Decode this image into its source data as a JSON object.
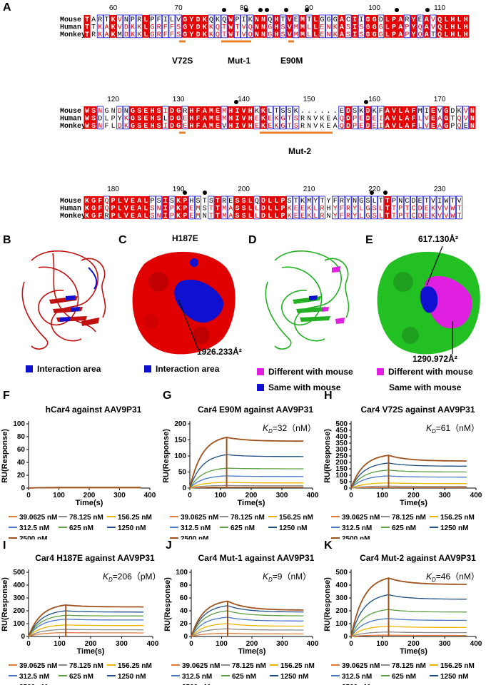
{
  "panels": {
    "A": "A",
    "B": "B",
    "C": "C",
    "D": "D",
    "E": "E",
    "F": "F",
    "G": "G",
    "H": "H",
    "I": "I",
    "J": "J",
    "K": "K"
  },
  "alignment": {
    "species": [
      "Mouse",
      "Human",
      "Monkey"
    ],
    "blocks": [
      {
        "ruler": [
          {
            "n": "60",
            "c": 4
          },
          {
            "n": "70",
            "c": 14
          },
          {
            "n": "80",
            "c": 24
          },
          {
            "n": "90",
            "c": 34
          },
          {
            "n": "100",
            "c": 44
          },
          {
            "n": "110",
            "c": 54
          }
        ],
        "rows": [
          "TARTKVNPRLPFILVGYDKQKQWPIKNNQHTVEMTLGGGACIIGGDLPARYEAVQLHLH",
          "TTKAKVDKKLGRFFSGYDKKQTWTVQNNGHSVMMLLENKASISGGGLPAPYQAVQLHLH",
          "TRKAKMDKKLGRFFSGYDKKQTWTVQNNGHSVMMLLENKASISGGGLPAPYQATQLHLH"
        ],
        "annotations": [
          {
            "label": "V72S"
          },
          {
            "label": "Mut-1"
          },
          {
            "label": "E90M"
          }
        ]
      },
      {
        "ruler": [
          {
            "n": "120",
            "c": 4
          },
          {
            "n": "130",
            "c": 14
          },
          {
            "n": "140",
            "c": 24
          },
          {
            "n": "150",
            "c": 34
          },
          {
            "n": "160",
            "c": 44
          },
          {
            "n": "170",
            "c": 54
          }
        ],
        "rows": [
          "WSNGNDNGSEHSIDGRHFAMEMHIVHKKLTSSK......EDSKDKFAVLAFMIEVGDKVN",
          "WSDLPYKGSEHSLDGEHFAMEMHIVHEKEKGTSRNVKEAQDPEDEIAVLAFLVEAGTQVN",
          "WSNFLDKGSEHSIDGEHFAMEVHIVHEKEKGTSRNVKEAQDPEDEIAVLAFLVEAGPQEN"
        ],
        "annotations": [
          {
            "label": "Mut-2"
          }
        ]
      },
      {
        "ruler": [
          {
            "n": "180",
            "c": 4
          },
          {
            "n": "190",
            "c": 14
          },
          {
            "n": "200",
            "c": 24
          },
          {
            "n": "210",
            "c": 34
          },
          {
            "n": "220",
            "c": 44
          },
          {
            "n": "230",
            "c": 54
          }
        ],
        "rows": [
          "KGFQPLVEALPSISKPHSTSTRESSLQDLLPSTKMYTYFRYNGSLTTPNCDETVIWTV",
          "KGFQPLVEALSNIPKPEMSTTMASSLLDLLPKEEKLRHYFRYLGSLTTPTCDEKVVWTV",
          "KGFRPLVEALSNIPKPEMNTTMASSLLDLLPKEEKLRNYFRYLGSLTTPTCDEKVVWTV"
        ],
        "annotations": [
          {
            "label": "H187E"
          }
        ]
      }
    ]
  },
  "structures": {
    "B": {
      "legend": "Interaction area"
    },
    "C": {
      "legend": "Interaction area",
      "area": "1926.233Å²"
    },
    "D": {
      "legend1": "Different with mouse",
      "legend2": "Same with mouse"
    },
    "E": {
      "legend1": "Different with mouse",
      "legend2": "Same with mouse",
      "area1": "617.130Å²",
      "area2": "1290.972Å²"
    }
  },
  "colors": {
    "red": "#e60000",
    "blue": "#1010d0",
    "green": "#22c022",
    "magenta": "#e020e0"
  },
  "chart_data": [
    {
      "id": "F",
      "type": "line",
      "title": "hCar4 against AAV9P31",
      "kd": "",
      "xlabel": "Time(s)",
      "ylabel": "RU(Response)",
      "xlim": [
        0,
        400
      ],
      "ylim": [
        0,
        100
      ],
      "xticks": [
        0,
        100,
        200,
        300,
        400
      ],
      "yticks": [
        0,
        20,
        40,
        60,
        80,
        100
      ],
      "peaks": [
        0.3,
        0.4,
        0.5,
        0.6,
        0.7,
        0.8,
        0.9
      ],
      "ends": [
        0.3,
        0.4,
        0.5,
        0.6,
        0.7,
        0.8,
        0.9
      ]
    },
    {
      "id": "G",
      "type": "line",
      "title": "Car4 E90M against AAV9P31",
      "kd": "=32（nM）",
      "xlabel": "Time(s)",
      "ylabel": "RU(Response)",
      "xlim": [
        0,
        400
      ],
      "ylim": [
        0,
        200
      ],
      "xticks": [
        0,
        100,
        200,
        300,
        400
      ],
      "yticks": [
        0,
        50,
        100,
        150,
        200
      ],
      "peaks": [
        3,
        8,
        18,
        38,
        62,
        104,
        158
      ],
      "ends": [
        3,
        7,
        16,
        36,
        60,
        98,
        146
      ]
    },
    {
      "id": "H",
      "type": "line",
      "title": "Car4 V72S against AAV9P31",
      "kd": "=61（nM）",
      "xlabel": "Time(s)",
      "ylabel": "RU(Response)",
      "xlim": [
        0,
        400
      ],
      "ylim": [
        0,
        500
      ],
      "xticks": [
        0,
        100,
        200,
        300,
        400
      ],
      "yticks": [
        0,
        50,
        100,
        150,
        200,
        250,
        300,
        350,
        400,
        450,
        500
      ],
      "peaks": [
        5,
        15,
        40,
        95,
        140,
        195,
        255
      ],
      "ends": [
        5,
        13,
        35,
        85,
        125,
        170,
        210
      ]
    },
    {
      "id": "I",
      "type": "line",
      "title": "Car4  H187E against AAV9P31",
      "kd": "=206（pM）",
      "xlabel": "Time(s)",
      "ylabel": "RU(Response)",
      "xlim": [
        0,
        400
      ],
      "ylim": [
        0,
        500
      ],
      "xticks": [
        0,
        100,
        200,
        300,
        400
      ],
      "yticks": [
        0,
        100,
        200,
        300,
        400,
        500
      ],
      "peaks": [
        30,
        55,
        90,
        135,
        165,
        200,
        245
      ],
      "ends": [
        28,
        52,
        85,
        128,
        160,
        190,
        230
      ]
    },
    {
      "id": "J",
      "type": "line",
      "title": "Car4 Mut-1 against AAV9P31",
      "kd": "=9（nM）",
      "xlabel": "Time(s)",
      "ylabel": "RU(Response)",
      "xlim": [
        0,
        400
      ],
      "ylim": [
        0,
        100
      ],
      "xticks": [
        0,
        100,
        200,
        300,
        400
      ],
      "yticks": [
        0,
        20,
        40,
        60,
        80,
        100
      ],
      "peaks": [
        5,
        12,
        20,
        30,
        40,
        48,
        55
      ],
      "ends": [
        4,
        10,
        16,
        24,
        32,
        38,
        41
      ]
    },
    {
      "id": "K",
      "type": "line",
      "title": "Car4 Mut-2 against AAV9P31",
      "kd": "=46（nM）",
      "xlabel": "Time(s)",
      "ylabel": "RU(Response)",
      "xlim": [
        0,
        400
      ],
      "ylim": [
        0,
        500
      ],
      "xticks": [
        0,
        100,
        200,
        300,
        400
      ],
      "yticks": [
        0,
        100,
        200,
        300,
        400,
        500
      ],
      "peaks": [
        10,
        35,
        80,
        140,
        210,
        325,
        455
      ],
      "ends": [
        8,
        30,
        70,
        125,
        190,
        290,
        405
      ]
    }
  ],
  "legend": {
    "entries": [
      "39.0625 nM",
      "78.125 nM",
      "156.25 nM",
      "312.5 nM",
      "625 nM",
      "1250 nM",
      "2500 nM"
    ],
    "colors": [
      "#e07b39",
      "#8c8c8c",
      "#f0b400",
      "#4a78c8",
      "#5aa040",
      "#1d4f86",
      "#a0521d"
    ]
  }
}
